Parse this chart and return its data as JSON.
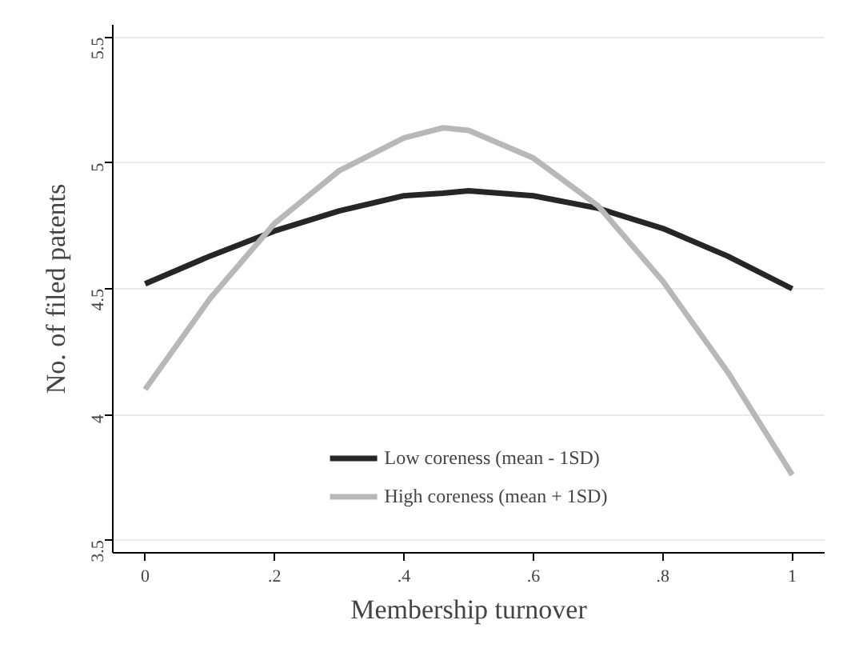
{
  "chart_data": {
    "type": "line",
    "xlabel": "Membership turnover",
    "ylabel": "No. of filed patents",
    "x": [
      0,
      0.1,
      0.2,
      0.3,
      0.4,
      0.46,
      0.5,
      0.6,
      0.7,
      0.8,
      0.9,
      1
    ],
    "series": [
      {
        "name": "Low coreness (mean - 1SD)",
        "color": "#262626",
        "values": [
          4.52,
          4.63,
          4.73,
          4.81,
          4.87,
          4.88,
          4.89,
          4.87,
          4.82,
          4.74,
          4.63,
          4.5
        ]
      },
      {
        "name": "High coreness (mean + 1SD)",
        "color": "#b8b8b8",
        "values": [
          4.1,
          4.46,
          4.76,
          4.97,
          5.1,
          5.14,
          5.13,
          5.02,
          4.83,
          4.53,
          4.17,
          3.76
        ]
      }
    ],
    "xlim": [
      -0.05,
      1.05
    ],
    "ylim": [
      3.45,
      5.55
    ],
    "xticks": [
      0,
      {
        "value": 0.2,
        "label": ".2"
      },
      {
        "value": 0.4,
        "label": ".4"
      },
      {
        "value": 0.6,
        "label": ".6"
      },
      {
        "value": 0.8,
        "label": ".8"
      },
      1
    ],
    "yticks": [
      3.5,
      4,
      4.5,
      5,
      5.5
    ],
    "grid": "y",
    "legend": "bottom",
    "line_style": "solid",
    "marker": "none"
  }
}
